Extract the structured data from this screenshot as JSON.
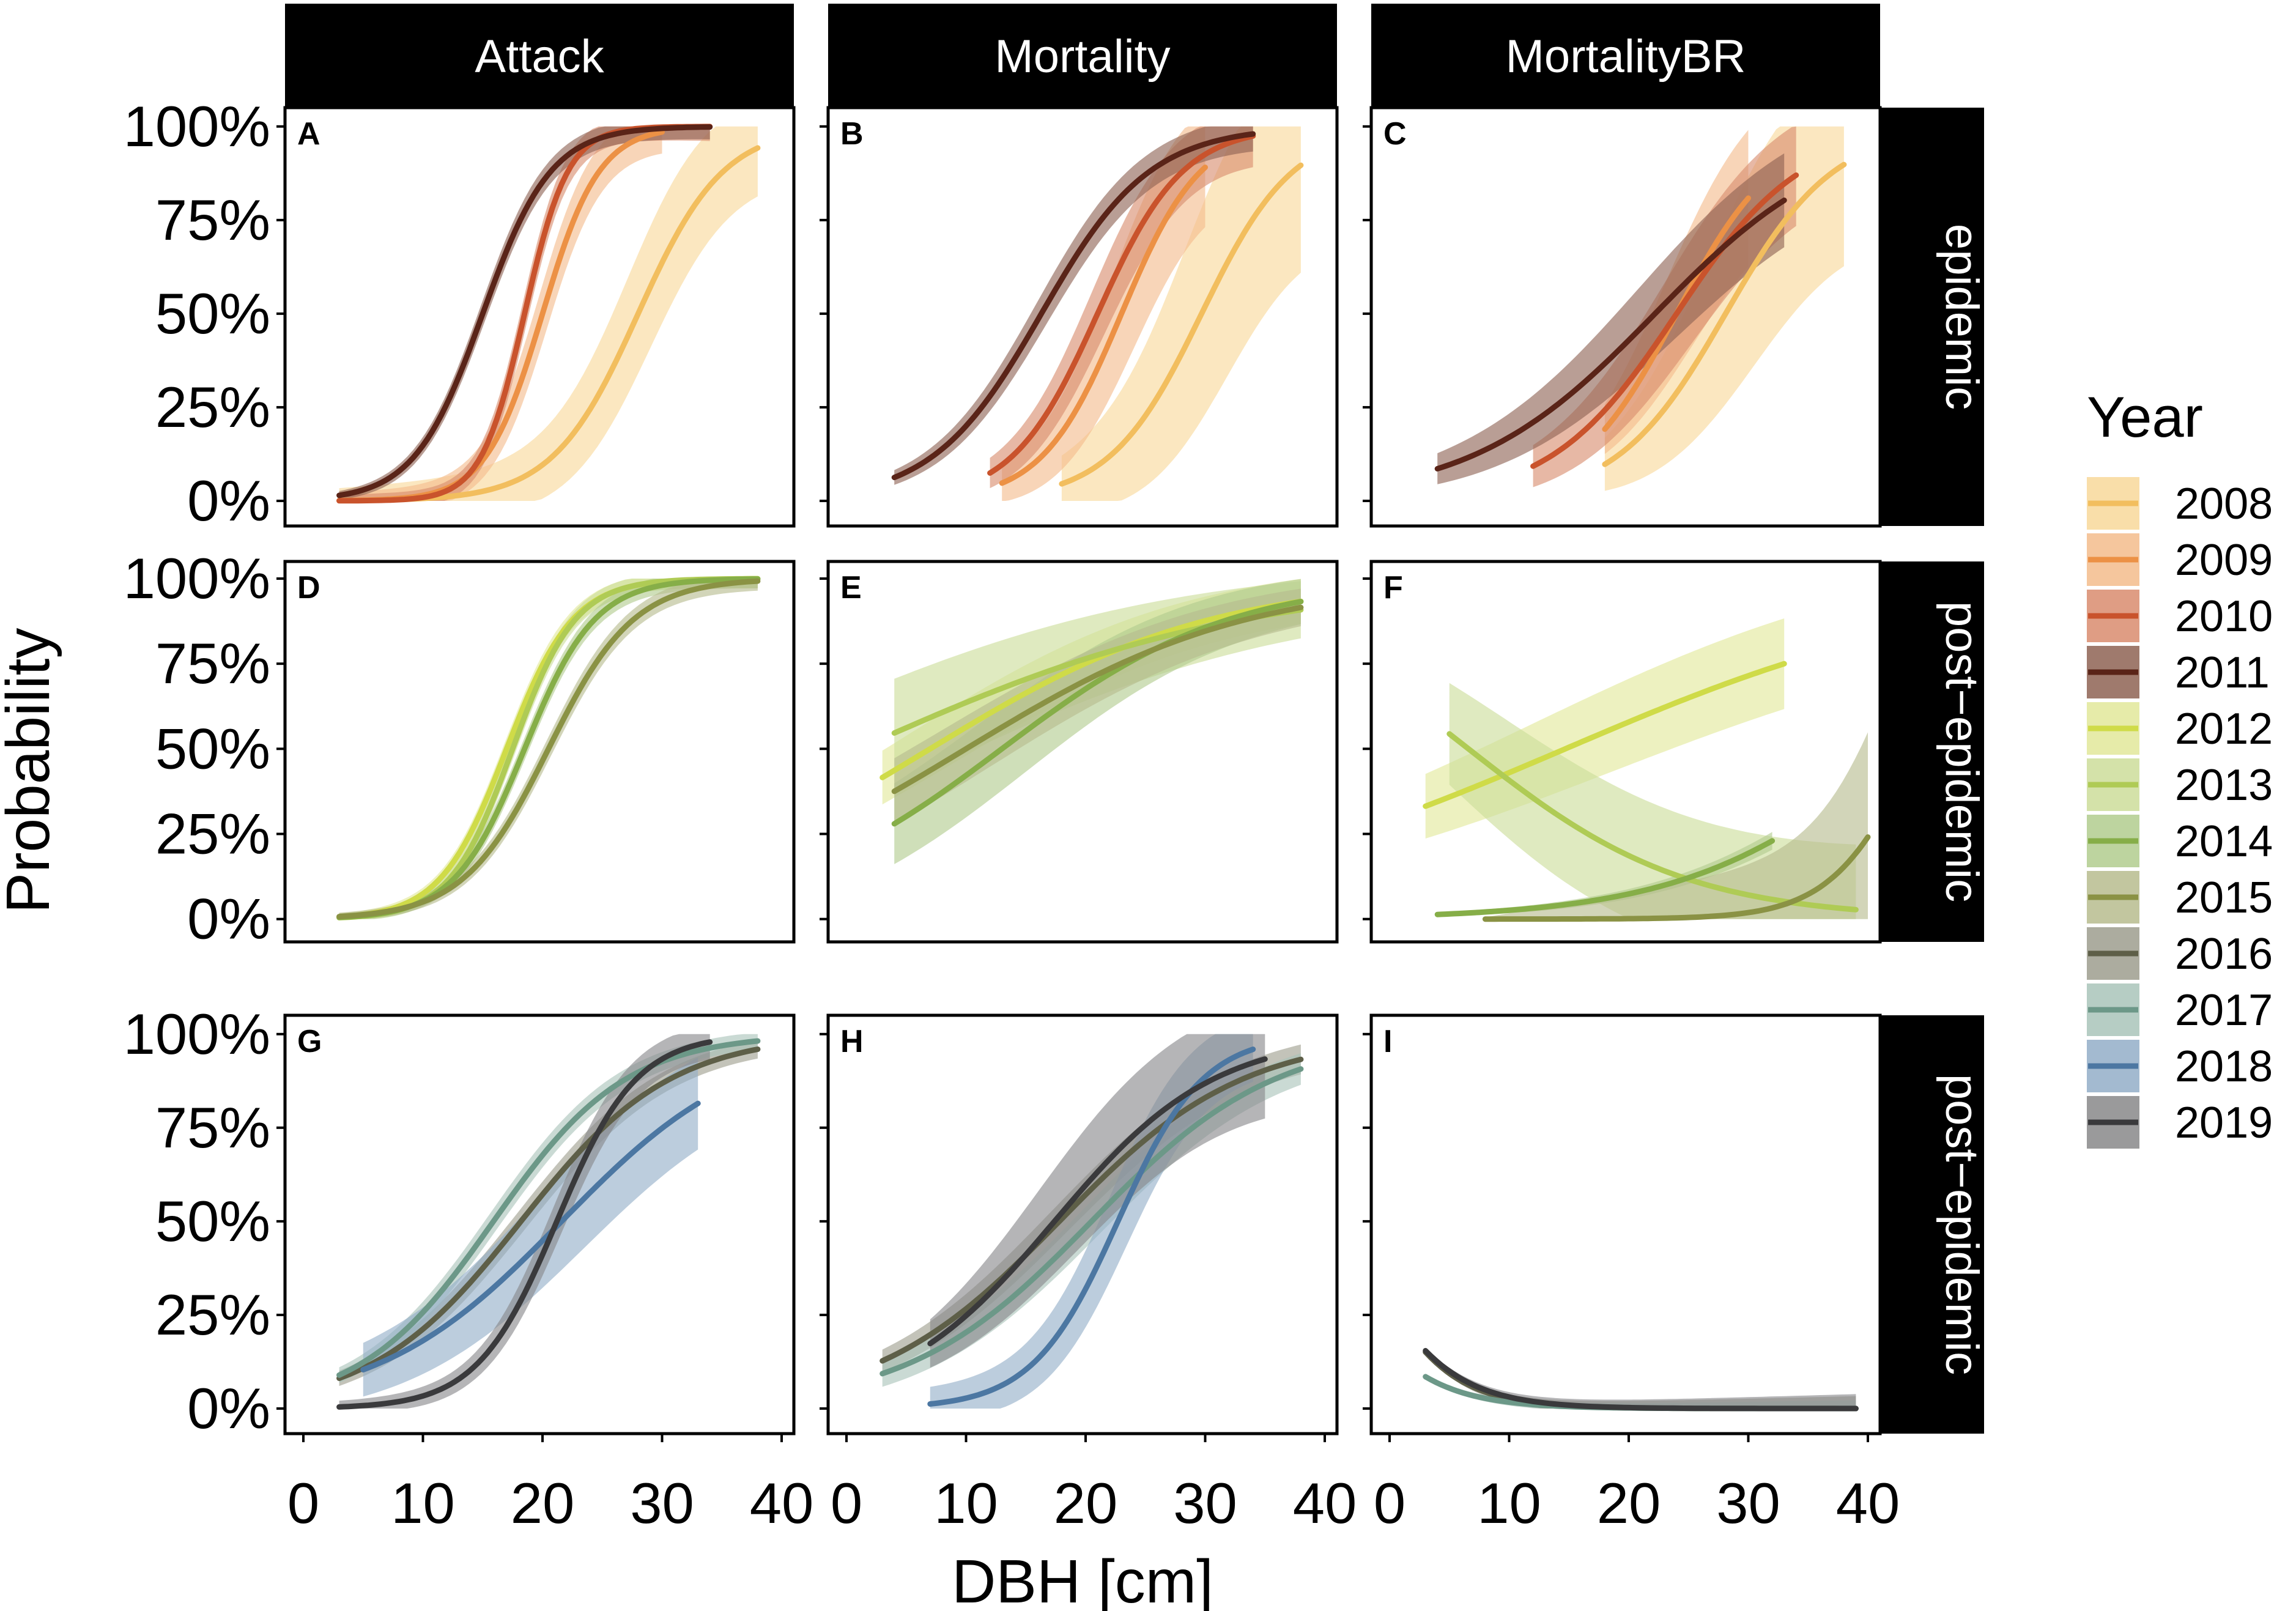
{
  "chart_data": {
    "type": "line",
    "title": "",
    "xlabel": "DBH [cm]",
    "ylabel": "Probability",
    "xlim": [
      0,
      40
    ],
    "ylim": [
      0,
      1
    ],
    "x_ticks": [
      "0",
      "10",
      "20",
      "30",
      "40"
    ],
    "y_ticks": [
      "0%",
      "25%",
      "50%",
      "75%",
      "100%"
    ],
    "columns": [
      "Attack",
      "Mortality",
      "MortalityBR"
    ],
    "rows": [
      "epidemic",
      "post−epidemic",
      "post−epidemic"
    ],
    "legend": {
      "title": "Year",
      "entries": [
        {
          "year": "2008",
          "color": "#F2BE5E",
          "fill": "#F8D89A"
        },
        {
          "year": "2009",
          "color": "#EC9145",
          "fill": "#F3BC8C"
        },
        {
          "year": "2010",
          "color": "#C9532C",
          "fill": "#D98C6E"
        },
        {
          "year": "2011",
          "color": "#5A2418",
          "fill": "#8E6354"
        },
        {
          "year": "2012",
          "color": "#CFDB48",
          "fill": "#E2E89A"
        },
        {
          "year": "2013",
          "color": "#AFCB55",
          "fill": "#CCDD9A"
        },
        {
          "year": "2014",
          "color": "#86AE48",
          "fill": "#B1CC8E"
        },
        {
          "year": "2015",
          "color": "#8A9244",
          "fill": "#B7BC8E"
        },
        {
          "year": "2016",
          "color": "#5E5F48",
          "fill": "#9E9E8E"
        },
        {
          "year": "2017",
          "color": "#6C9888",
          "fill": "#A9C4BA"
        },
        {
          "year": "2018",
          "color": "#4C77A2",
          "fill": "#93AEC8"
        },
        {
          "year": "2019",
          "color": "#3A3A3C",
          "fill": "#88888A"
        }
      ]
    },
    "panels": [
      {
        "tag": "A",
        "row": 0,
        "col": 0,
        "series": [
          {
            "year": "2008",
            "model": "logistic",
            "x_range": [
              3,
              38
            ],
            "x0": 28,
            "k": 0.28,
            "band": [
              0.06,
              0.2
            ]
          },
          {
            "year": "2009",
            "model": "logistic",
            "x_range": [
              3,
              30
            ],
            "x0": 20,
            "k": 0.42,
            "band": [
              0.04,
              0.1
            ]
          },
          {
            "year": "2010",
            "model": "logistic",
            "x_range": [
              3,
              34
            ],
            "x0": 18.5,
            "k": 0.55,
            "band": [
              0.03,
              0.07
            ]
          },
          {
            "year": "2011",
            "model": "logistic",
            "x_range": [
              3,
              34
            ],
            "x0": 15,
            "k": 0.35,
            "band": [
              0.02,
              0.06
            ]
          }
        ]
      },
      {
        "tag": "B",
        "row": 0,
        "col": 1,
        "series": [
          {
            "year": "2008",
            "model": "logistic",
            "x_range": [
              18,
              38
            ],
            "x0": 29.7,
            "k": 0.26,
            "band": [
              0.12,
              0.4
            ]
          },
          {
            "year": "2009",
            "model": "logistic",
            "x_range": [
              13,
              30
            ],
            "x0": 23,
            "k": 0.3,
            "band": [
              0.08,
              0.22
            ]
          },
          {
            "year": "2010",
            "model": "logistic",
            "x_range": [
              12,
              34
            ],
            "x0": 21,
            "k": 0.28,
            "band": [
              0.06,
              0.14
            ]
          },
          {
            "year": "2011",
            "model": "logistic",
            "x_range": [
              4,
              34
            ],
            "x0": 16.3,
            "k": 0.22,
            "band": [
              0.03,
              0.08
            ]
          }
        ]
      },
      {
        "tag": "C",
        "row": 0,
        "col": 2,
        "series": [
          {
            "year": "2008",
            "model": "logistic",
            "x_range": [
              18,
              38
            ],
            "x0": 28.1,
            "k": 0.22,
            "band": [
              0.1,
              0.38
            ]
          },
          {
            "year": "2009",
            "model": "logistic",
            "x_range": [
              18,
              30
            ],
            "x0": 24,
            "k": 0.24,
            "band": [
              0.08,
              0.22
            ]
          },
          {
            "year": "2010",
            "model": "logistic",
            "x_range": [
              12,
              34
            ],
            "x0": 24,
            "k": 0.19,
            "band": [
              0.08,
              0.18
            ]
          },
          {
            "year": "2011",
            "model": "logistic",
            "x_range": [
              4,
              33
            ],
            "x0": 22.2,
            "k": 0.13,
            "band": [
              0.06,
              0.15
            ]
          }
        ]
      },
      {
        "tag": "D",
        "row": 1,
        "col": 0,
        "series": [
          {
            "year": "2012",
            "model": "logistic",
            "x_range": [
              3,
              38
            ],
            "x0": 17.0,
            "k": 0.36,
            "band": [
              0.02,
              0.05
            ]
          },
          {
            "year": "2013",
            "model": "logistic",
            "x_range": [
              3,
              38
            ],
            "x0": 17.5,
            "k": 0.38,
            "band": [
              0.02,
              0.05
            ]
          },
          {
            "year": "2014",
            "model": "logistic",
            "x_range": [
              3,
              38
            ],
            "x0": 18.5,
            "k": 0.34,
            "band": [
              0.02,
              0.05
            ]
          },
          {
            "year": "2015",
            "model": "logistic",
            "x_range": [
              3,
              38
            ],
            "x0": 20.5,
            "k": 0.28,
            "band": [
              0.02,
              0.05
            ]
          }
        ]
      },
      {
        "tag": "E",
        "row": 1,
        "col": 1,
        "series": [
          {
            "year": "2012",
            "model": "logistic",
            "x_range": [
              3,
              38
            ],
            "x0": 7,
            "k": 0.085,
            "band": [
              0.08,
              0.1
            ]
          },
          {
            "year": "2013",
            "model": "logistic",
            "x_range": [
              4,
              38
            ],
            "x0": 1,
            "k": 0.062,
            "band": [
              0.16,
              0.12
            ]
          },
          {
            "year": "2014",
            "model": "logistic",
            "x_range": [
              4,
              38
            ],
            "x0": 13,
            "k": 0.105,
            "band": [
              0.13,
              0.1
            ]
          },
          {
            "year": "2015",
            "model": "logistic",
            "x_range": [
              4,
              38
            ],
            "x0": 10,
            "k": 0.085,
            "band": [
              0.1,
              0.08
            ]
          }
        ]
      },
      {
        "tag": "F",
        "row": 1,
        "col": 2,
        "series": [
          {
            "year": "2012",
            "model": "logistic",
            "x_range": [
              3,
              33
            ],
            "x0": 14.7,
            "k": 0.06,
            "band": [
              0.1,
              0.15
            ]
          },
          {
            "year": "2013",
            "model": "logistic",
            "x_range": [
              5,
              39
            ],
            "x0": 6.6,
            "k": -0.11,
            "band": [
              0.15,
              0.32
            ]
          },
          {
            "year": "2014",
            "model": "logistic",
            "x_range": [
              4,
              32
            ],
            "x0": 43,
            "k": 0.11,
            "band": [
              0.01,
              0.03
            ]
          },
          {
            "year": "2015",
            "model": "logistic",
            "x_range": [
              8,
              40
            ],
            "x0": 44.1,
            "k": 0.28,
            "band": [
              0.01,
              0.35
            ]
          }
        ]
      },
      {
        "tag": "G",
        "row": 2,
        "col": 0,
        "series": [
          {
            "year": "2016",
            "model": "logistic",
            "x_range": [
              3,
              38
            ],
            "x0": 18.2,
            "k": 0.16,
            "band": [
              0.03,
              0.04
            ]
          },
          {
            "year": "2017",
            "model": "logistic",
            "x_range": [
              3,
              38
            ],
            "x0": 15.9,
            "k": 0.18,
            "band": [
              0.03,
              0.04
            ]
          },
          {
            "year": "2018",
            "model": "logistic",
            "x_range": [
              5,
              33
            ],
            "x0": 21.6,
            "k": 0.13,
            "band": [
              0.1,
              0.15
            ]
          },
          {
            "year": "2019",
            "model": "logistic",
            "x_range": [
              3,
              34
            ],
            "x0": 21.2,
            "k": 0.3,
            "band": [
              0.03,
              0.08
            ]
          }
        ]
      },
      {
        "tag": "H",
        "row": 2,
        "col": 1,
        "series": [
          {
            "year": "2016",
            "model": "logistic",
            "x_range": [
              3,
              38
            ],
            "x0": 17.8,
            "k": 0.13,
            "band": [
              0.04,
              0.06
            ]
          },
          {
            "year": "2017",
            "model": "logistic",
            "x_range": [
              3,
              38
            ],
            "x0": 20.5,
            "k": 0.13,
            "band": [
              0.05,
              0.06
            ]
          },
          {
            "year": "2018",
            "model": "logistic",
            "x_range": [
              7,
              34
            ],
            "x0": 22.7,
            "k": 0.28,
            "band": [
              0.08,
              0.14
            ]
          },
          {
            "year": "2019",
            "model": "logistic",
            "x_range": [
              7,
              35
            ],
            "x0": 17.4,
            "k": 0.15,
            "band": [
              0.08,
              0.24
            ]
          }
        ]
      },
      {
        "tag": "I",
        "row": 2,
        "col": 2,
        "series": [
          {
            "year": "2016",
            "model": "logistic",
            "x_range": [
              3,
              39
            ],
            "x0": -3.4,
            "k": -0.27,
            "band": [
              0.01,
              0.06
            ]
          },
          {
            "year": "2017",
            "model": "logistic",
            "x_range": [
              3,
              39
            ],
            "x0": -6.9,
            "k": -0.24,
            "band": [
              0.01,
              0.04
            ]
          },
          {
            "year": "2019",
            "model": "logistic",
            "x_range": [
              3,
              39
            ],
            "x0": -3.8,
            "k": -0.25,
            "band": [
              0.01,
              0.07
            ]
          }
        ]
      }
    ]
  }
}
